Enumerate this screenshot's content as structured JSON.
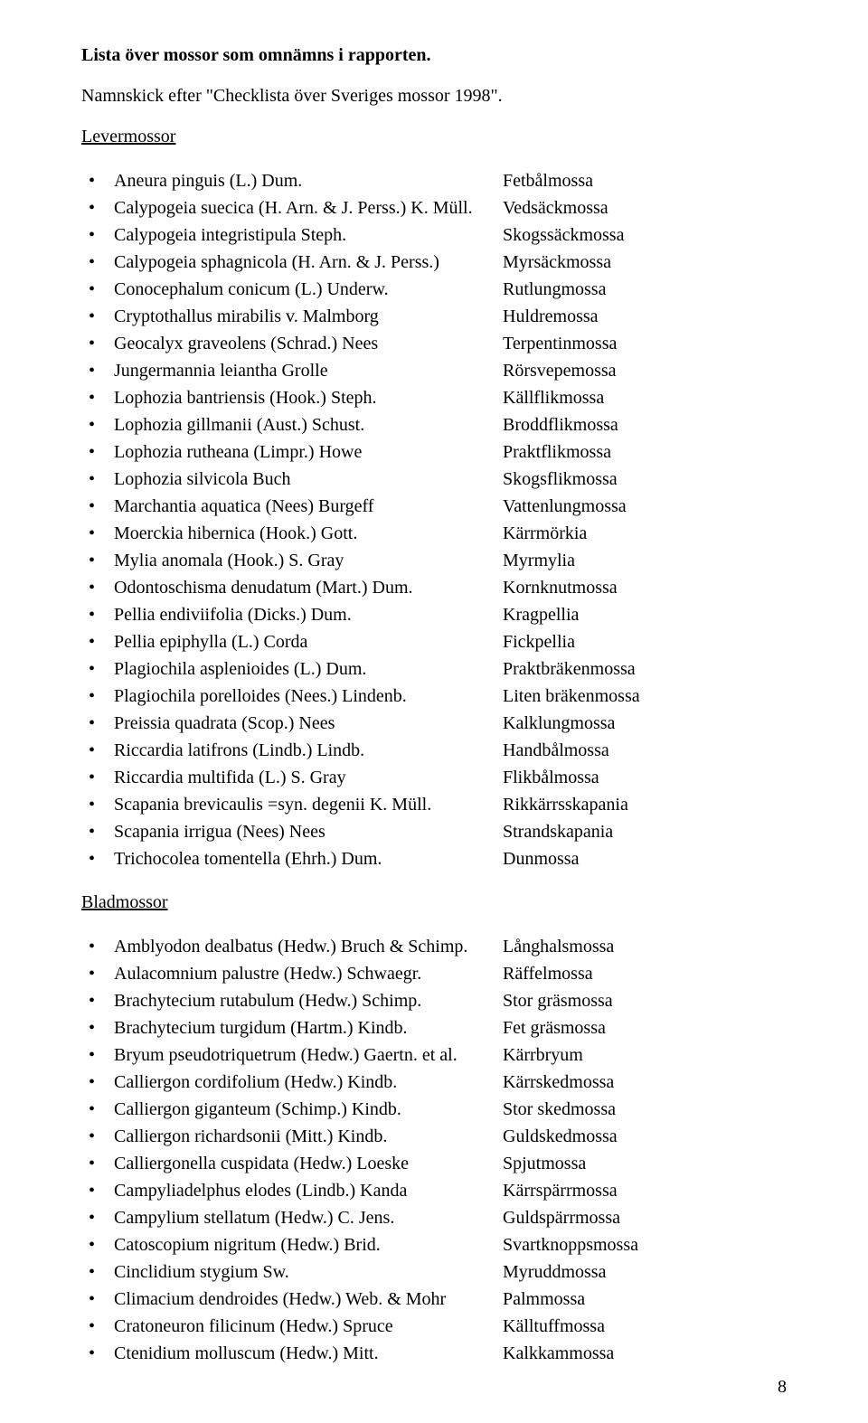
{
  "title": "Lista över mossor som omnämns i rapporten.",
  "subtitle": "Namnskick efter \"Checklista över Sveriges mossor 1998\".",
  "sections": [
    {
      "header": "Levermossor",
      "items": [
        {
          "latin": "Aneura pinguis (L.) Dum.",
          "common": "Fetbålmossa"
        },
        {
          "latin": "Calypogeia suecica (H. Arn. & J. Perss.) K. Müll.",
          "common": "Vedsäckmossa"
        },
        {
          "latin": "Calypogeia integristipula Steph.",
          "common": "Skogssäckmossa"
        },
        {
          "latin": "Calypogeia sphagnicola (H. Arn. & J. Perss.)",
          "common": "Myrsäckmossa"
        },
        {
          "latin": "Conocephalum conicum (L.) Underw.",
          "common": "Rutlungmossa"
        },
        {
          "latin": "Cryptothallus mirabilis v. Malmborg",
          "common": "Huldremossa"
        },
        {
          "latin": "Geocalyx graveolens (Schrad.) Nees",
          "common": "Terpentinmossa"
        },
        {
          "latin": "Jungermannia leiantha Grolle",
          "common": "Rörsvepemossa"
        },
        {
          "latin": "Lophozia bantriensis (Hook.) Steph.",
          "common": "Källflikmossa"
        },
        {
          "latin": "Lophozia gillmanii (Aust.) Schust.",
          "common": "Broddflikmossa"
        },
        {
          "latin": "Lophozia rutheana (Limpr.) Howe",
          "common": "Praktflikmossa"
        },
        {
          "latin": "Lophozia silvicola Buch",
          "common": "Skogsflikmossa"
        },
        {
          "latin": "Marchantia aquatica (Nees) Burgeff",
          "common": "Vattenlungmossa"
        },
        {
          "latin": "Moerckia hibernica (Hook.) Gott.",
          "common": "Kärrmörkia"
        },
        {
          "latin": "Mylia anomala (Hook.) S. Gray",
          "common": "Myrmylia"
        },
        {
          "latin": "Odontoschisma denudatum (Mart.) Dum.",
          "common": "Kornknutmossa"
        },
        {
          "latin": "Pellia endiviifolia (Dicks.) Dum.",
          "common": "Kragpellia"
        },
        {
          "latin": "Pellia epiphylla (L.) Corda",
          "common": "Fickpellia"
        },
        {
          "latin": "Plagiochila asplenioides (L.) Dum.",
          "common": "Praktbräkenmossa"
        },
        {
          "latin": "Plagiochila porelloides (Nees.) Lindenb.",
          "common": "Liten bräkenmossa"
        },
        {
          "latin": "Preissia quadrata (Scop.) Nees",
          "common": "Kalklungmossa"
        },
        {
          "latin": "Riccardia latifrons (Lindb.) Lindb.",
          "common": "Handbålmossa"
        },
        {
          "latin": "Riccardia multifida (L.) S. Gray",
          "common": "Flikbålmossa"
        },
        {
          "latin": "Scapania brevicaulis =syn. degenii K. Müll.",
          "common": "Rikkärrsskapania"
        },
        {
          "latin": "Scapania irrigua (Nees) Nees",
          "common": "Strandskapania"
        },
        {
          "latin": "Trichocolea tomentella (Ehrh.) Dum.",
          "common": "Dunmossa"
        }
      ]
    },
    {
      "header": "Bladmossor",
      "items": [
        {
          "latin": "Amblyodon dealbatus (Hedw.) Bruch & Schimp.",
          "common": "Långhalsmossa"
        },
        {
          "latin": "Aulacomnium palustre (Hedw.) Schwaegr.",
          "common": "Räffelmossa"
        },
        {
          "latin": "Brachytecium rutabulum (Hedw.) Schimp.",
          "common": "Stor gräsmossa"
        },
        {
          "latin": "Brachytecium turgidum (Hartm.) Kindb.",
          "common": "Fet gräsmossa"
        },
        {
          "latin": "Bryum pseudotriquetrum (Hedw.) Gaertn. et al.",
          "common": "Kärrbryum"
        },
        {
          "latin": "Calliergon cordifolium (Hedw.) Kindb.",
          "common": "Kärrskedmossa"
        },
        {
          "latin": "Calliergon giganteum (Schimp.) Kindb.",
          "common": "Stor skedmossa"
        },
        {
          "latin": "Calliergon richardsonii (Mitt.) Kindb.",
          "common": "Guldskedmossa"
        },
        {
          "latin": "Calliergonella cuspidata (Hedw.) Loeske",
          "common": "Spjutmossa"
        },
        {
          "latin": "Campyliadelphus elodes (Lindb.) Kanda",
          "common": "Kärrspärrmossa"
        },
        {
          "latin": "Campylium stellatum (Hedw.) C. Jens.",
          "common": "Guldspärrmossa"
        },
        {
          "latin": "Catoscopium nigritum (Hedw.) Brid.",
          "common": "Svartknoppsmossa"
        },
        {
          "latin": "Cinclidium stygium Sw.",
          "common": "Myruddmossa"
        },
        {
          "latin": "Climacium dendroides (Hedw.) Web. & Mohr",
          "common": "Palmmossa"
        },
        {
          "latin": "Cratoneuron filicinum (Hedw.) Spruce",
          "common": "Källtuffmossa"
        },
        {
          "latin": "Ctenidium molluscum (Hedw.) Mitt.",
          "common": "Kalkkammossa"
        }
      ]
    }
  ],
  "pageNumber": "8"
}
